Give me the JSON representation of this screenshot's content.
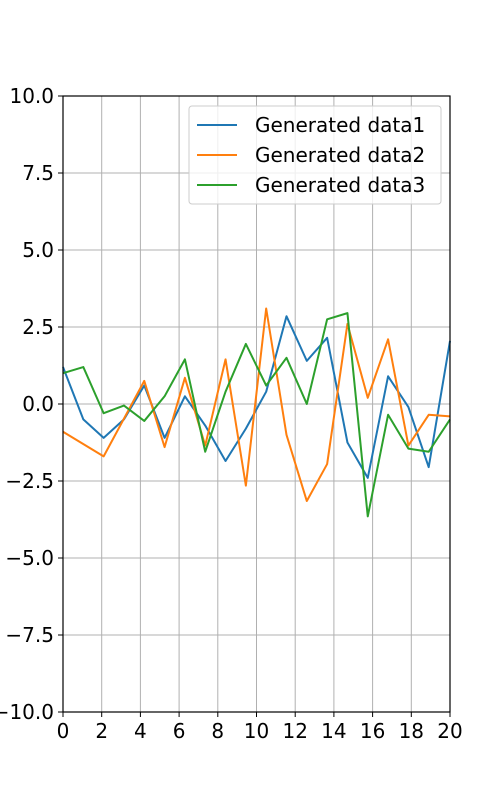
{
  "chart_data": {
    "type": "line",
    "title": "",
    "xlabel": "",
    "ylabel": "",
    "xlim": [
      0,
      20
    ],
    "ylim": [
      -10,
      10
    ],
    "xticks": [
      0,
      2,
      4,
      6,
      8,
      10,
      12,
      14,
      16,
      18,
      20
    ],
    "xtick_labels": [
      "0",
      "2",
      "4",
      "6",
      "8",
      "10",
      "12",
      "14",
      "16",
      "18",
      "20"
    ],
    "yticks": [
      -10,
      -7.5,
      -5,
      -2.5,
      0,
      2.5,
      5,
      7.5,
      10
    ],
    "ytick_labels": [
      "−10.0",
      "−7.5",
      "−5.0",
      "−2.5",
      "0.0",
      "2.5",
      "5.0",
      "7.5",
      "10.0"
    ],
    "grid": true,
    "legend_position": "top-right",
    "x": [
      0,
      1.05,
      2.1,
      3.15,
      4.2,
      5.25,
      6.3,
      7.35,
      8.4,
      9.45,
      10.5,
      11.55,
      12.6,
      13.65,
      14.7,
      15.75,
      16.8,
      17.85,
      18.9,
      19.95,
      20
    ],
    "series": [
      {
        "name": "Generated data1",
        "color": "#1f77b4",
        "x": [
          0,
          1.05,
          2.1,
          3.15,
          4.2,
          5.25,
          6.3,
          7.35,
          8.4,
          9.45,
          10.5,
          11.55,
          12.6,
          13.65,
          14.7,
          15.75,
          16.8,
          17.85,
          18.9,
          20
        ],
        "values": [
          1.2,
          -0.5,
          -1.1,
          -0.5,
          0.6,
          -1.1,
          0.25,
          -0.7,
          -1.85,
          -0.8,
          0.4,
          2.85,
          1.4,
          2.15,
          -1.25,
          -2.4,
          0.9,
          -0.1,
          -2.05,
          2.05
        ]
      },
      {
        "name": "Generated data2",
        "color": "#ff7f0e",
        "x": [
          0,
          2.1,
          4.2,
          5.25,
          6.3,
          7.35,
          8.4,
          9.45,
          10.5,
          11.55,
          12.6,
          13.65,
          14.7,
          15.75,
          16.8,
          17.85,
          18.9,
          20
        ],
        "values": [
          -0.9,
          -1.7,
          0.75,
          -1.4,
          0.85,
          -1.35,
          1.45,
          -2.65,
          3.1,
          -1.0,
          -3.15,
          -1.95,
          2.6,
          0.2,
          2.1,
          -1.35,
          -0.35,
          -0.4
        ]
      },
      {
        "name": "Generated data3",
        "color": "#2ca02c",
        "x": [
          0,
          1.05,
          2.1,
          3.15,
          4.2,
          5.25,
          6.3,
          7.35,
          8.4,
          9.45,
          10.5,
          11.55,
          12.6,
          13.65,
          14.7,
          15.75,
          16.8,
          17.85,
          18.9,
          20
        ],
        "values": [
          1.0,
          1.2,
          -0.3,
          -0.05,
          -0.55,
          0.25,
          1.45,
          -1.55,
          0.4,
          1.95,
          0.6,
          1.5,
          0.0,
          2.75,
          2.95,
          -3.65,
          -0.35,
          -1.45,
          -1.55,
          -0.5
        ]
      }
    ]
  }
}
